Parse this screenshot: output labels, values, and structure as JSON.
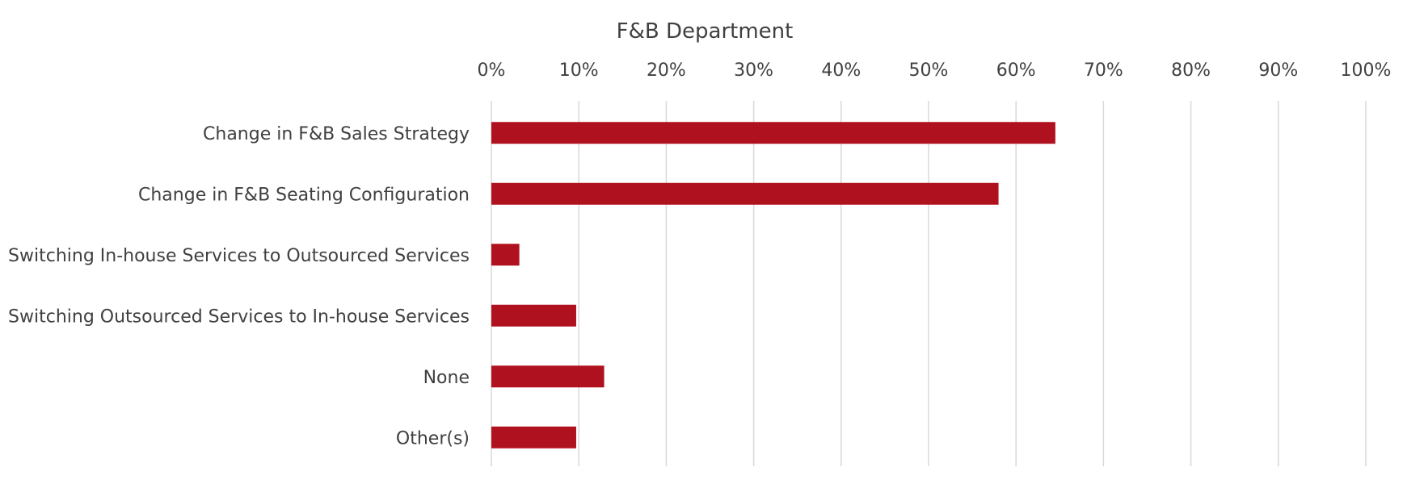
{
  "chart_data": {
    "type": "bar",
    "orientation": "horizontal",
    "title": "F&B Department",
    "categories": [
      "Change in F&B Sales Strategy",
      "Change in F&B Seating Configuration",
      "Switching In-house Services to Outsourced Services",
      "Switching Outsourced Services to In-house Services",
      "None",
      "Other(s)"
    ],
    "series": [
      {
        "values": [
          64.5,
          58,
          3.2,
          9.7,
          12.9,
          9.7
        ],
        "color": "#b0111e"
      }
    ],
    "xlim": [
      0,
      100
    ],
    "x_ticks": [
      0,
      10,
      20,
      30,
      40,
      50,
      60,
      70,
      80,
      90,
      100
    ],
    "x_tick_labels": [
      "0%",
      "10%",
      "20%",
      "30%",
      "40%",
      "50%",
      "60%",
      "70%",
      "80%",
      "90%",
      "100%"
    ],
    "x_axis_position": "top",
    "grid": true,
    "legend": "none"
  }
}
